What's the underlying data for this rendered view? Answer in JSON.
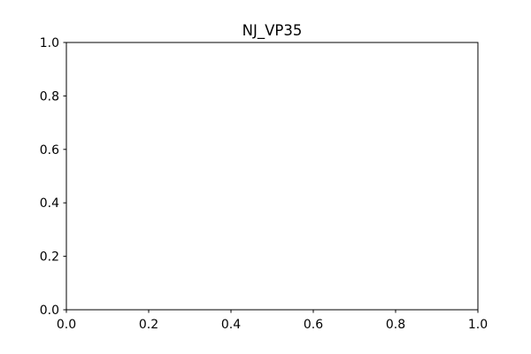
{
  "chart_data": {
    "type": "line",
    "title": "NJ_VP35",
    "xlabel": "",
    "ylabel": "",
    "xlim": [
      0.0,
      1.0
    ],
    "ylim": [
      0.0,
      1.0
    ],
    "x_ticks": [
      0.0,
      0.2,
      0.4,
      0.6,
      0.8,
      1.0
    ],
    "y_ticks": [
      0.0,
      0.2,
      0.4,
      0.6,
      0.8,
      1.0
    ],
    "x_tick_labels": [
      "0.0",
      "0.2",
      "0.4",
      "0.6",
      "0.8",
      "1.0"
    ],
    "y_tick_labels": [
      "0.0",
      "0.2",
      "0.4",
      "0.6",
      "0.8",
      "1.0"
    ],
    "series": [],
    "grid": false,
    "legend": "none",
    "colors": {
      "background": "#ffffff",
      "axes": "#000000",
      "text": "#000000"
    }
  }
}
